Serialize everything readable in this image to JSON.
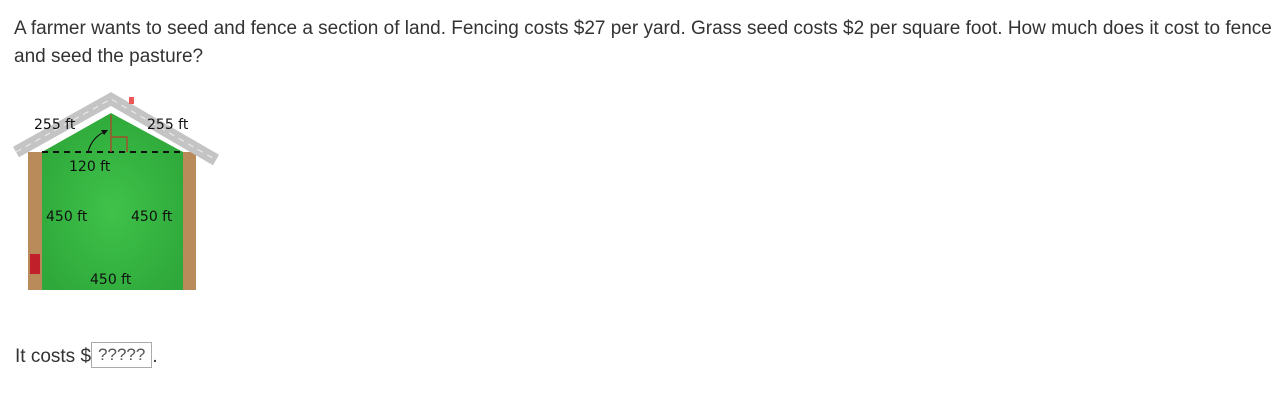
{
  "question": "A farmer wants to seed and fence a section of land. Fencing costs $27 per yard. Grass seed costs $2 per square foot. How much does it cost to fence and seed the pasture?",
  "figure": {
    "labels": {
      "roof_left": "255 ft",
      "roof_right": "255 ft",
      "height": "120 ft",
      "left_side": "450 ft",
      "right_side": "450 ft",
      "bottom": "450 ft"
    },
    "colors": {
      "grass": "#3fbf4a",
      "road": "#c8c8c8",
      "fence": "#b98a5a"
    }
  },
  "answer": {
    "prefix": "It costs $",
    "value": "?????",
    "suffix": "."
  }
}
